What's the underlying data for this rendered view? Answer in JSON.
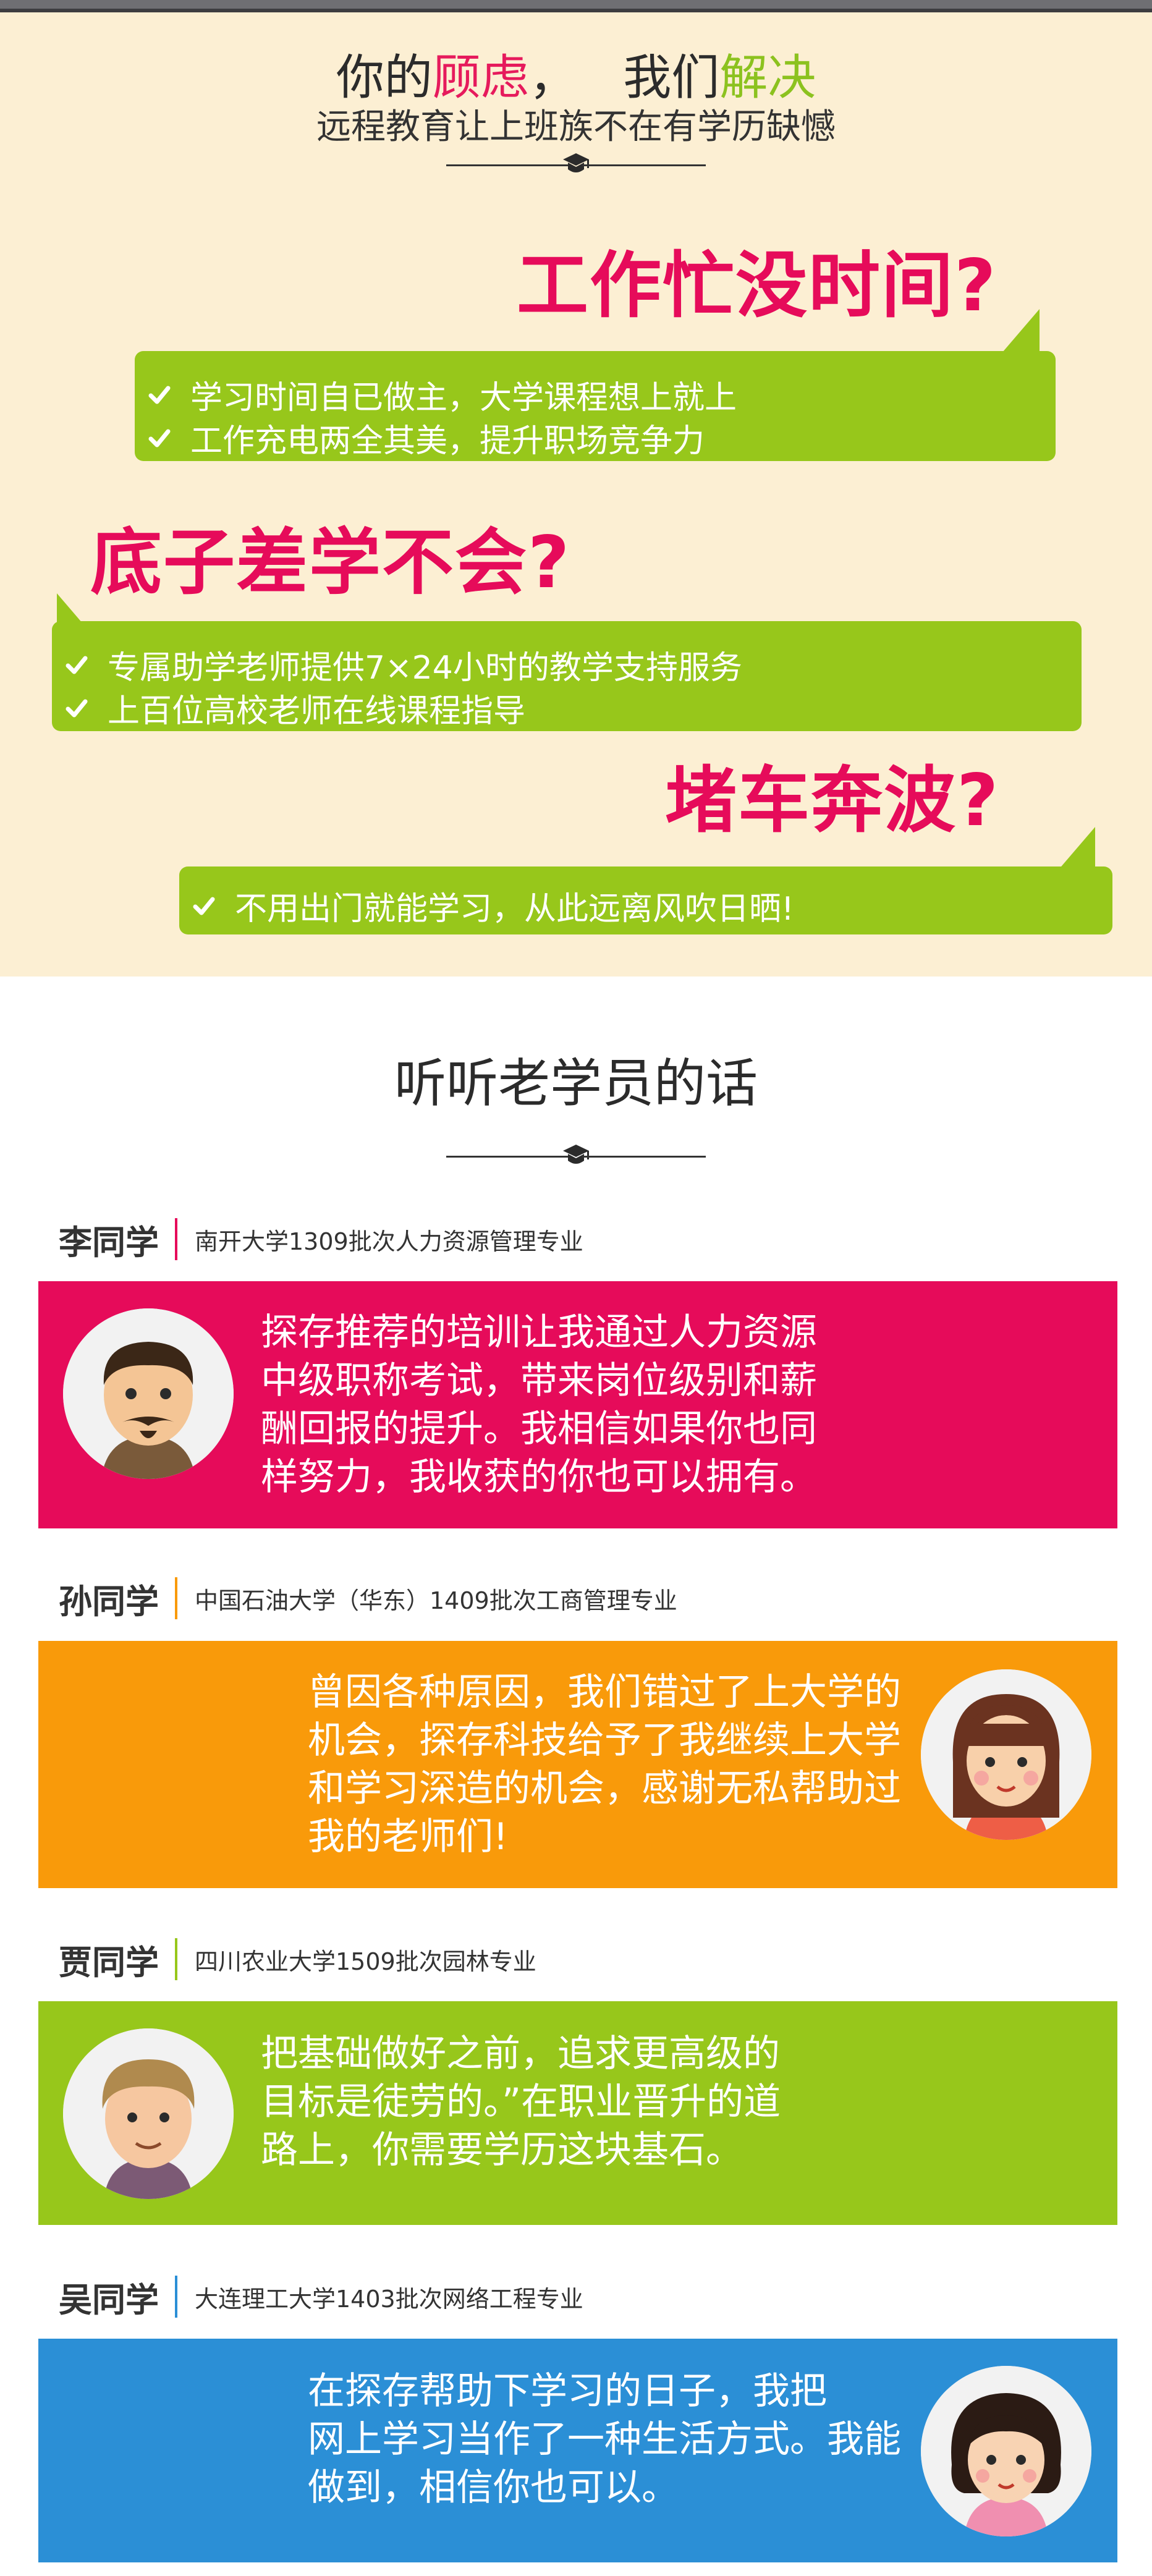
{
  "concerns": {
    "heading_part1": "你的",
    "heading_highlight1": "顾虑",
    "heading_part2": "，   我们",
    "heading_highlight2": "解决",
    "subtitle": "远程教育让上班族不在有学历缺憾",
    "items": [
      {
        "title": "工作忙没时间?",
        "lines": [
          "学习时间自已做主，大学课程想上就上",
          "工作充电两全其美，提升职场竞争力"
        ]
      },
      {
        "title": "底子差学不会?",
        "lines": [
          "专属助学老师提供7×24小时的教学支持服务",
          "上百位高校老师在线课程指导"
        ]
      },
      {
        "title": "堵车奔波?",
        "lines": [
          "不用出门就能学习，从此远离风吹日晒!"
        ]
      }
    ]
  },
  "testimonials": {
    "title": "听听老学员的话",
    "students": [
      {
        "name": "李同学",
        "school": "南开大学1309批次人力资源管理专业",
        "quote": [
          "探存推荐的培训让我通过人力资源",
          "中级职称考试，带来岗位级别和薪",
          "酬回报的提升。我相信如果你也同",
          "样努力，我收获的你也可以拥有。"
        ]
      },
      {
        "name": "孙同学",
        "school": "中国石油大学（华东）1409批次工商管理专业",
        "quote": [
          "曾因各种原因，我们错过了上大学的",
          "机会，探存科技给予了我继续上大学",
          "和学习深造的机会，感谢无私帮助过",
          "我的老师们!"
        ]
      },
      {
        "name": "贾同学",
        "school": "四川农业大学1509批次园林专业",
        "quote": [
          "把基础做好之前，追求更高级的",
          "目标是徒劳的。”在职业晋升的道",
          "路上，你需要学历这块基石。"
        ]
      },
      {
        "name": "吴同学",
        "school": "大连理工大学1403批次网络工程专业",
        "quote": [
          "在探存帮助下学习的日子，我把",
          "网上学习当作了一种生活方式。我能",
          "做到，相信你也可以。"
        ]
      }
    ]
  },
  "colors": {
    "accent_pink": "#e60b5a",
    "accent_green": "#97c71b",
    "accent_orange": "#f99a0a",
    "accent_blue": "#2b8fd6",
    "cream": "#fcefd3"
  },
  "icons": {
    "divider": "graduation-cap-icon",
    "bullet": "checkmark-icon"
  }
}
